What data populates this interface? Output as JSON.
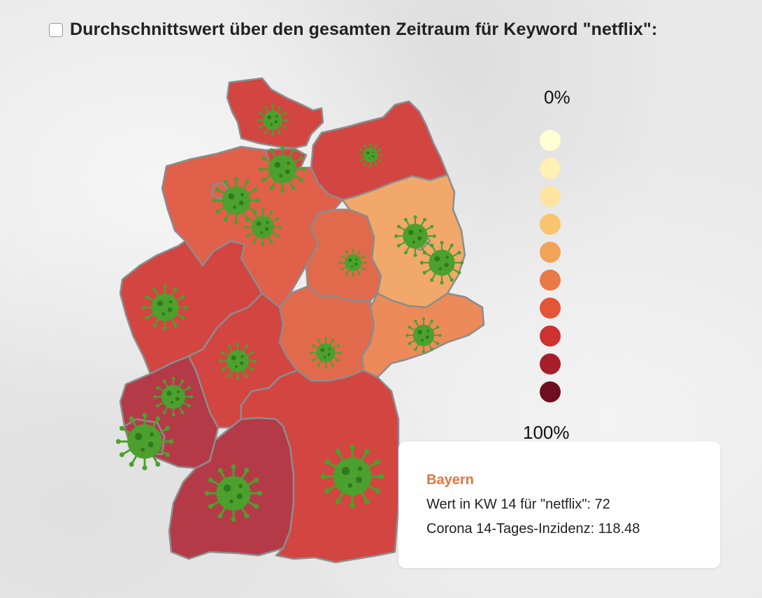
{
  "header": {
    "title": "Durchschnittswert über den gesamten Zeitraum für Keyword \"netflix\":"
  },
  "legend": {
    "min_label": "0%",
    "max_label": "100%",
    "colors": [
      "#ffffd4",
      "#fff0b3",
      "#fde4a0",
      "#f8c46e",
      "#f1a357",
      "#ea7a45",
      "#e35536",
      "#cc3230",
      "#a61e2b",
      "#6e0e21"
    ]
  },
  "map": {
    "border_color": "#8c8c8c",
    "virus_color": "#4ca02d",
    "regions": [
      {
        "name": "Schleswig-Holstein",
        "color": "#d24541"
      },
      {
        "name": "Mecklenburg-Vorpommern",
        "color": "#d24541"
      },
      {
        "name": "Hamburg",
        "color": "#d24541"
      },
      {
        "name": "Bremen",
        "color": "#e0604a"
      },
      {
        "name": "Niedersachsen",
        "color": "#e0604a"
      },
      {
        "name": "Brandenburg",
        "color": "#f1a86a"
      },
      {
        "name": "Berlin",
        "color": "#f1a86a"
      },
      {
        "name": "Sachsen-Anhalt",
        "color": "#e26a4c"
      },
      {
        "name": "Sachsen",
        "color": "#ec8a5a"
      },
      {
        "name": "Thüringen",
        "color": "#e26a4c"
      },
      {
        "name": "Nordrhein-Westfalen",
        "color": "#d24541"
      },
      {
        "name": "Hessen",
        "color": "#d24541"
      },
      {
        "name": "Rheinland-Pfalz",
        "color": "#b53a48"
      },
      {
        "name": "Saarland",
        "color": "#b53a48"
      },
      {
        "name": "Baden-Württemberg",
        "color": "#b53a48"
      },
      {
        "name": "Bayern",
        "color": "#d24541"
      }
    ]
  },
  "tooltip": {
    "state": "Bayern",
    "value_line": "Wert in KW 14 für \"netflix\": 72",
    "incidence_line": "Corona 14-Tages-Inzidenz: 118.48"
  }
}
